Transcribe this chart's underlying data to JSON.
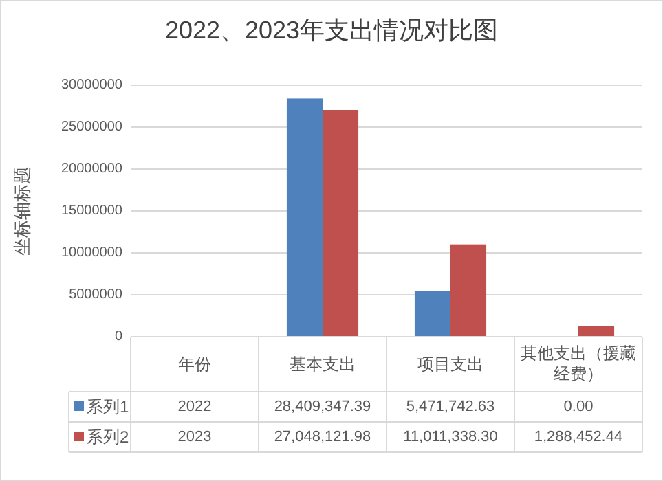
{
  "chart_data": {
    "type": "bar",
    "title": "2022、2023年支出情况对比图",
    "ylabel": "坐标轴标题",
    "categories": [
      "年份",
      "基本支出",
      "项目支出",
      "其他支出（援藏经费）"
    ],
    "series": [
      {
        "name": "系列1",
        "color": "#4f81bd",
        "values": [
          2022,
          28409347.39,
          5471742.63,
          0
        ],
        "value_labels": [
          "2022",
          "28,409,347.39",
          "5,471,742.63",
          "0.00"
        ]
      },
      {
        "name": "系列2",
        "color": "#c0504d",
        "values": [
          2023,
          27048121.98,
          11011338.3,
          1288452.44
        ],
        "value_labels": [
          "2023",
          "27,048,121.98",
          "11,011,338.30",
          "1,288,452.44"
        ]
      }
    ],
    "ylim": [
      0,
      30000000
    ],
    "yticks": [
      0,
      5000000,
      10000000,
      15000000,
      20000000,
      25000000,
      30000000
    ],
    "grid": "y",
    "legend": "bottom"
  }
}
